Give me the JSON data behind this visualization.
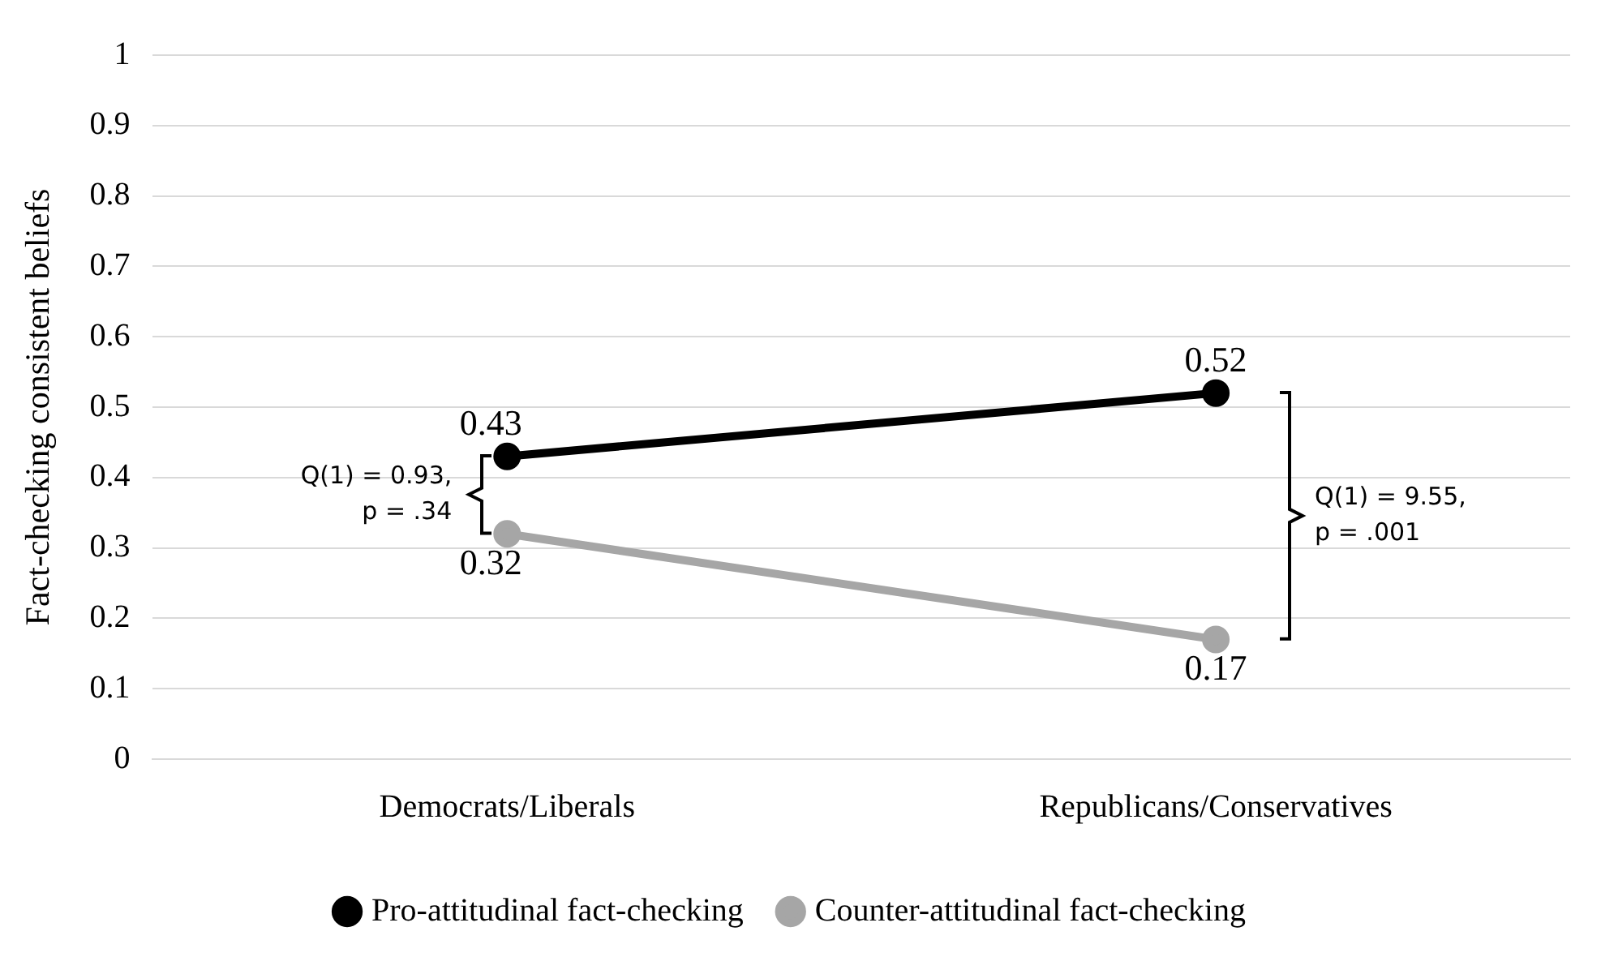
{
  "chart_data": {
    "type": "line",
    "categories": [
      "Democrats/Liberals",
      "Republicans/Conservatives"
    ],
    "ylabel": "Fact-checking consistent beliefs",
    "series": [
      {
        "name": "Pro-attitudinal fact-checking",
        "color": "#000000",
        "values": [
          0.43,
          0.52
        ]
      },
      {
        "name": "Counter-attitudinal fact-checking",
        "color": "#a6a6a6",
        "values": [
          0.32,
          0.17
        ]
      }
    ],
    "ylim": [
      0,
      1
    ],
    "yticks": [
      0,
      0.1,
      0.2,
      0.3,
      0.4,
      0.5,
      0.6,
      0.7,
      0.8,
      0.9,
      1
    ],
    "grid": "y",
    "legend": "bottom",
    "marker": "circle",
    "line_style": "solid",
    "data_labels": true,
    "annotations": [
      "Q(1) = 0.93, p = .34",
      "Q(1) = 9.55, p = .001"
    ]
  }
}
